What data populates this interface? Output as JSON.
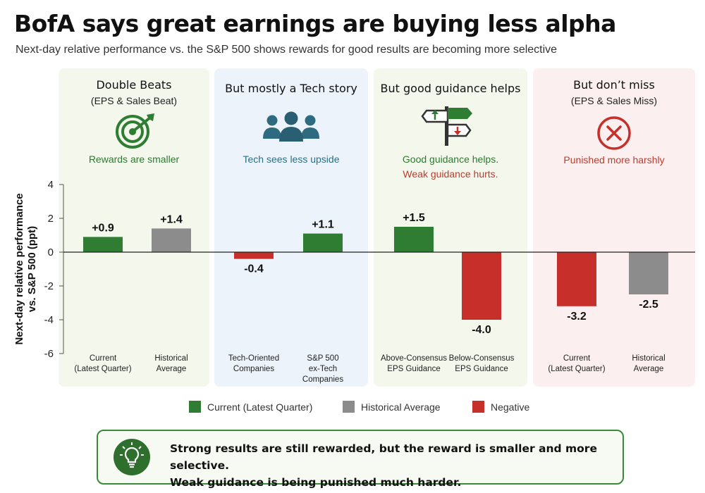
{
  "title": "BofA says great earnings are buying less alpha",
  "subtitle": "Next-day relative performance vs. the S&P 500 shows rewards for good results are becoming more selective",
  "panels": [
    {
      "title": "Double Beats",
      "subtitle": "(EPS & Sales Beat)",
      "icon": "target-arrow-icon",
      "notes": [
        "Rewards are smaller"
      ]
    },
    {
      "title": "But mostly a Tech story",
      "subtitle": "",
      "icon": "people-group-icon",
      "notes": [
        "Tech sees less upside"
      ]
    },
    {
      "title": "But good guidance helps",
      "subtitle": "",
      "icon": "signpost-icon",
      "notes": [
        "Good guidance helps.",
        "Weak guidance hurts."
      ]
    },
    {
      "title": "But don’t miss",
      "subtitle": "(EPS & Sales Miss)",
      "icon": "x-circle-icon",
      "notes": [
        "Punished more harshly"
      ]
    }
  ],
  "chart_data": {
    "type": "bar",
    "ylabel": [
      "Next-day relative performance",
      "vs. S&P 500 (ppt)"
    ],
    "ylim": [
      -6,
      4
    ],
    "yticks": [
      "4",
      "2",
      "0",
      "-2",
      "-4",
      "-6"
    ],
    "bars": [
      {
        "category": [
          "Current",
          "(Latest Quarter)"
        ],
        "value": 0.9,
        "label": "+0.9",
        "kind": "current"
      },
      {
        "category": [
          "Historical",
          "Average"
        ],
        "value": 1.4,
        "label": "+1.4",
        "kind": "historical"
      },
      {
        "category": [
          "Tech-Oriented",
          "Companies"
        ],
        "value": -0.4,
        "label": "-0.4",
        "kind": "negative"
      },
      {
        "category": [
          "S&P 500",
          "ex-Tech",
          "Companies"
        ],
        "value": 1.1,
        "label": "+1.1",
        "kind": "current"
      },
      {
        "category": [
          "Above-Consensus",
          "EPS Guidance"
        ],
        "value": 1.5,
        "label": "+1.5",
        "kind": "current"
      },
      {
        "category": [
          "Below-Consensus",
          "EPS Guidance"
        ],
        "value": -4.0,
        "label": "-4.0",
        "kind": "negative"
      },
      {
        "category": [
          "Current",
          "(Latest Quarter)"
        ],
        "value": -3.2,
        "label": "-3.2",
        "kind": "negative"
      },
      {
        "category": [
          "Historical",
          "Average"
        ],
        "value": -2.5,
        "label": "-2.5",
        "kind": "historical"
      }
    ],
    "legend": [
      {
        "label": "Current (Latest Quarter)",
        "color": "#2e7d32"
      },
      {
        "label": "Historical Average",
        "color": "#8c8c8c"
      },
      {
        "label": "Negative",
        "color": "#c62f2a"
      }
    ],
    "colors": {
      "current": "#2e7d32",
      "historical": "#8c8c8c",
      "negative": "#c62f2a"
    },
    "legend_position": "bottom"
  },
  "callout": {
    "icon": "lightbulb-icon",
    "lines": [
      "Strong results are still rewarded, but the reward is smaller and more selective.",
      "Weak guidance is being punished much harder."
    ]
  }
}
